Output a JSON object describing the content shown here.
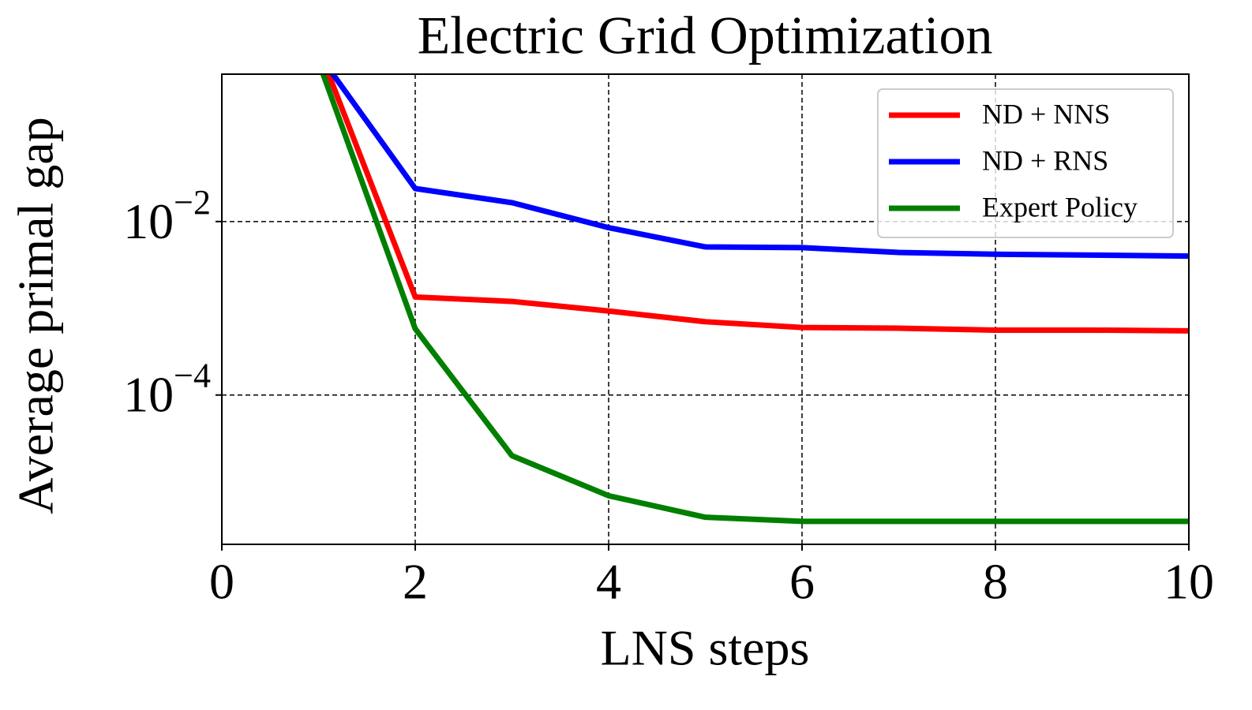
{
  "chart_data": {
    "type": "line",
    "title": "Electric Grid Optimization",
    "x_label": "LNS steps",
    "y_label": "Average primal gap",
    "x": [
      1,
      2,
      3,
      4,
      5,
      6,
      7,
      8,
      9,
      10
    ],
    "series": [
      {
        "name": "ND + NNS",
        "color": "#ff0000",
        "values": [
          1.0,
          0.00135,
          0.0012,
          0.00093,
          0.0007,
          0.0006,
          0.00059,
          0.00056,
          0.00056,
          0.00055
        ]
      },
      {
        "name": "ND + RNS",
        "color": "#0000ff",
        "values": [
          0.85,
          0.024,
          0.0165,
          0.0085,
          0.0051,
          0.005,
          0.0044,
          0.0042,
          0.0041,
          0.004
        ]
      },
      {
        "name": "Expert Policy",
        "color": "#007f00",
        "values": [
          0.7,
          0.00058,
          2e-05,
          6.9e-06,
          3.9e-06,
          3.5e-06,
          3.5e-06,
          3.5e-06,
          3.5e-06,
          3.5e-06
        ]
      }
    ],
    "xlim": [
      0,
      10
    ],
    "xticks": [
      0,
      2,
      4,
      6,
      8,
      10
    ],
    "ylim": [
      1.9e-06,
      0.5
    ],
    "y_scale": "log",
    "yticks": [
      {
        "value": 0.01,
        "label": "10−2"
      },
      {
        "value": 0.0001,
        "label": "10−4"
      }
    ],
    "grid": true,
    "legend": "upper right"
  }
}
